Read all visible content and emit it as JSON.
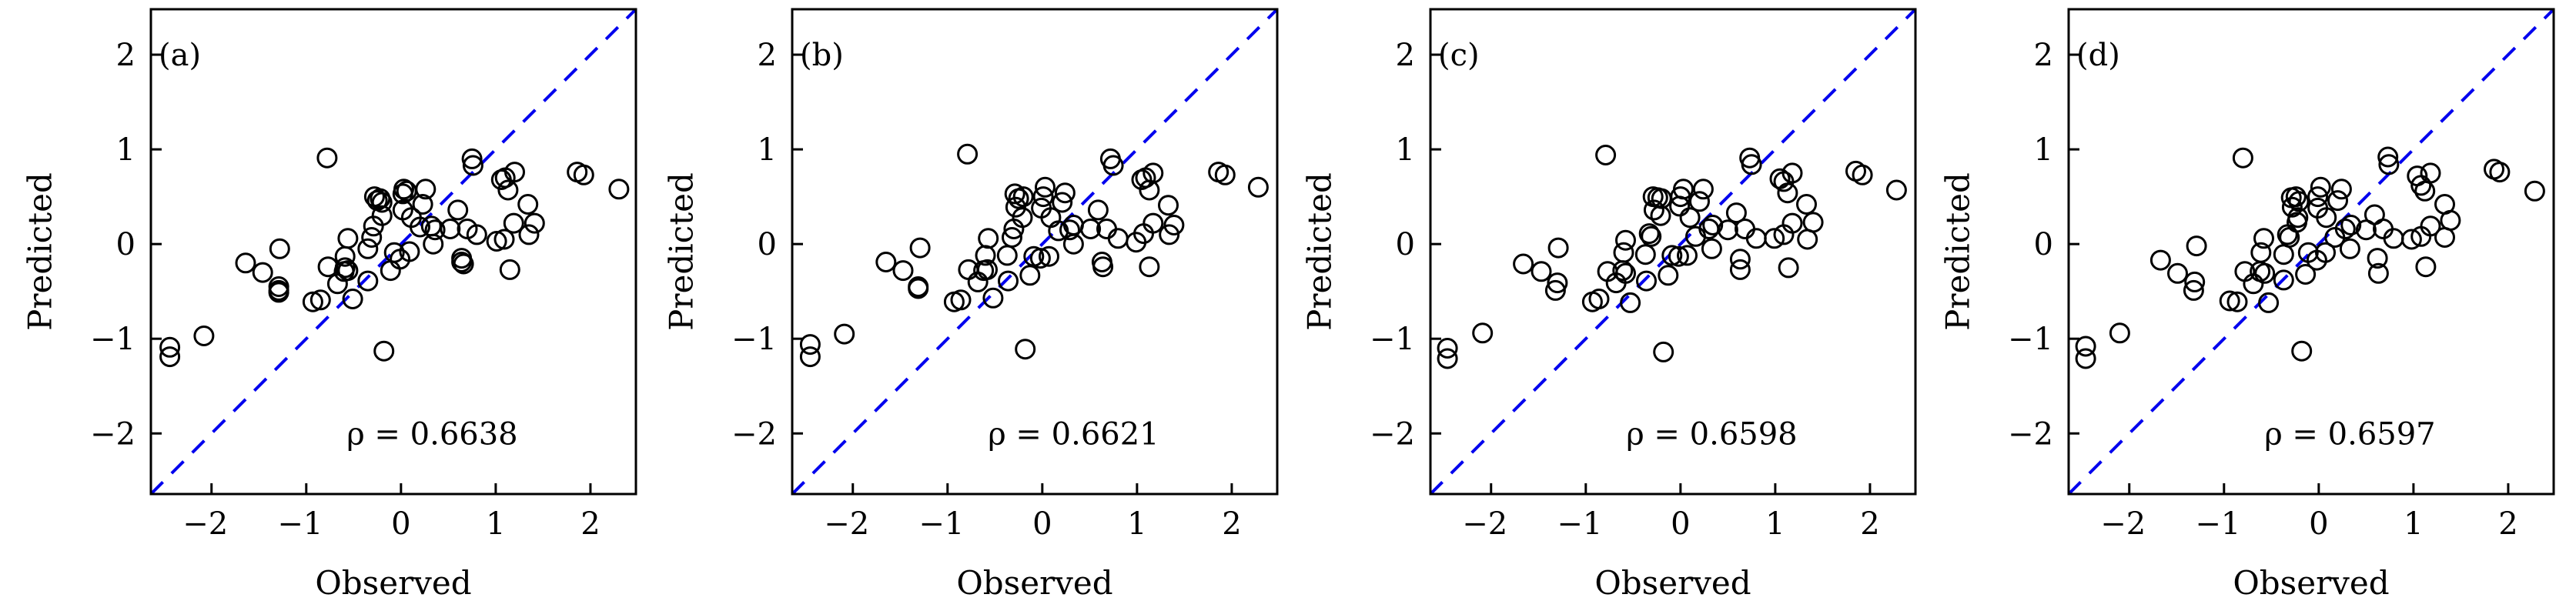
{
  "chart_data": [
    {
      "type": "scatter",
      "panel_label": "(a)",
      "xlabel": "Observed",
      "ylabel": "Predicted",
      "xlim": [
        -2.64,
        2.48
      ],
      "ylim": [
        -2.64,
        2.48
      ],
      "xticks": [
        -2,
        -1,
        0,
        1,
        2
      ],
      "yticks": [
        -2,
        -1,
        0,
        1,
        2
      ],
      "xtick_labels": [
        "−2",
        "−1",
        "0",
        "1",
        "2"
      ],
      "ytick_labels": [
        "−2",
        "−1",
        "0",
        "1",
        "2"
      ],
      "annotation": "ρ = 0.6638",
      "rho": 0.6638,
      "reference_line": {
        "type": "y=x",
        "style": "dashed",
        "color": "#0000ee"
      },
      "marker": {
        "shape": "open-circle",
        "color": "#000000"
      },
      "grid": false,
      "points": [
        [
          -2.44,
          -1.09
        ],
        [
          -2.44,
          -1.19
        ],
        [
          -2.08,
          -0.97
        ],
        [
          -1.64,
          -0.2
        ],
        [
          -1.46,
          -0.3
        ],
        [
          -1.29,
          -0.45
        ],
        [
          -1.29,
          -0.49
        ],
        [
          -1.29,
          -0.51
        ],
        [
          -1.28,
          -0.05
        ],
        [
          -0.93,
          -0.61
        ],
        [
          -0.85,
          -0.59
        ],
        [
          -0.78,
          0.91
        ],
        [
          -0.77,
          -0.24
        ],
        [
          -0.67,
          -0.42
        ],
        [
          -0.6,
          -0.29
        ],
        [
          -0.59,
          -0.25
        ],
        [
          -0.56,
          -0.28
        ],
        [
          -0.59,
          -0.13
        ],
        [
          -0.56,
          0.06
        ],
        [
          -0.51,
          -0.58
        ],
        [
          -0.35,
          -0.39
        ],
        [
          -0.35,
          -0.05
        ],
        [
          -0.31,
          0.07
        ],
        [
          -0.29,
          0.19
        ],
        [
          -0.28,
          0.5
        ],
        [
          -0.25,
          0.46
        ],
        [
          -0.22,
          0.48
        ],
        [
          -0.2,
          0.44
        ],
        [
          -0.2,
          0.3
        ],
        [
          -0.18,
          -1.13
        ],
        [
          -0.11,
          -0.28
        ],
        [
          -0.07,
          -0.09
        ],
        [
          -0.01,
          -0.16
        ],
        [
          0.02,
          0.53
        ],
        [
          0.03,
          0.58
        ],
        [
          0.06,
          0.56
        ],
        [
          0.02,
          0.36
        ],
        [
          0.09,
          -0.08
        ],
        [
          0.11,
          0.28
        ],
        [
          0.2,
          0.18
        ],
        [
          0.23,
          0.42
        ],
        [
          0.26,
          0.58
        ],
        [
          0.32,
          0.19
        ],
        [
          0.34,
          0.0
        ],
        [
          0.36,
          0.15
        ],
        [
          0.52,
          0.16
        ],
        [
          0.6,
          0.36
        ],
        [
          0.64,
          -0.15
        ],
        [
          0.64,
          -0.19
        ],
        [
          0.66,
          -0.21
        ],
        [
          0.7,
          0.16
        ],
        [
          0.75,
          0.9
        ],
        [
          0.76,
          0.83
        ],
        [
          0.8,
          0.1
        ],
        [
          1.01,
          0.03
        ],
        [
          1.06,
          0.68
        ],
        [
          1.09,
          0.05
        ],
        [
          1.1,
          0.7
        ],
        [
          1.13,
          0.57
        ],
        [
          1.15,
          -0.27
        ],
        [
          1.19,
          0.22
        ],
        [
          1.2,
          0.76
        ],
        [
          1.34,
          0.42
        ],
        [
          1.35,
          0.1
        ],
        [
          1.41,
          0.22
        ],
        [
          1.86,
          0.76
        ],
        [
          1.93,
          0.73
        ],
        [
          2.3,
          0.58
        ]
      ]
    },
    {
      "type": "scatter",
      "panel_label": "(b)",
      "xlabel": "Observed",
      "ylabel": "Predicted",
      "xlim": [
        -2.64,
        2.48
      ],
      "ylim": [
        -2.64,
        2.48
      ],
      "xticks": [
        -2,
        -1,
        0,
        1,
        2
      ],
      "yticks": [
        -2,
        -1,
        0,
        1,
        2
      ],
      "xtick_labels": [
        "−2",
        "−1",
        "0",
        "1",
        "2"
      ],
      "ytick_labels": [
        "−2",
        "−1",
        "0",
        "1",
        "2"
      ],
      "annotation": "ρ = 0.6621",
      "rho": 0.6621,
      "reference_line": {
        "type": "y=x",
        "style": "dashed",
        "color": "#0000ee"
      },
      "marker": {
        "shape": "open-circle",
        "color": "#000000"
      },
      "grid": false,
      "points": [
        [
          -2.45,
          -1.06
        ],
        [
          -2.45,
          -1.19
        ],
        [
          -2.09,
          -0.95
        ],
        [
          -1.65,
          -0.19
        ],
        [
          -1.47,
          -0.28
        ],
        [
          -1.31,
          -0.45
        ],
        [
          -1.31,
          -0.47
        ],
        [
          -1.29,
          -0.04
        ],
        [
          -0.93,
          -0.61
        ],
        [
          -0.86,
          -0.59
        ],
        [
          -0.79,
          0.95
        ],
        [
          -0.78,
          -0.27
        ],
        [
          -0.68,
          -0.4
        ],
        [
          -0.62,
          -0.28
        ],
        [
          -0.58,
          -0.27
        ],
        [
          -0.6,
          -0.12
        ],
        [
          -0.57,
          0.06
        ],
        [
          -0.52,
          -0.57
        ],
        [
          -0.37,
          -0.12
        ],
        [
          -0.36,
          -0.39
        ],
        [
          -0.32,
          0.07
        ],
        [
          -0.3,
          0.16
        ],
        [
          -0.29,
          0.53
        ],
        [
          -0.25,
          0.48
        ],
        [
          -0.2,
          0.5
        ],
        [
          -0.28,
          0.39
        ],
        [
          -0.21,
          0.28
        ],
        [
          -0.18,
          -1.11
        ],
        [
          -0.13,
          -0.33
        ],
        [
          -0.09,
          -0.13
        ],
        [
          -0.02,
          -0.15
        ],
        [
          0.07,
          -0.13
        ],
        [
          0.03,
          0.6
        ],
        [
          0.01,
          0.5
        ],
        [
          -0.01,
          0.38
        ],
        [
          0.09,
          0.28
        ],
        [
          0.24,
          0.54
        ],
        [
          0.21,
          0.44
        ],
        [
          0.17,
          0.14
        ],
        [
          0.29,
          0.15
        ],
        [
          0.33,
          0.2
        ],
        [
          0.33,
          0.0
        ],
        [
          0.59,
          0.36
        ],
        [
          0.51,
          0.16
        ],
        [
          0.68,
          0.16
        ],
        [
          0.63,
          -0.19
        ],
        [
          0.64,
          -0.24
        ],
        [
          0.72,
          0.9
        ],
        [
          0.75,
          0.83
        ],
        [
          0.8,
          0.06
        ],
        [
          0.99,
          0.02
        ],
        [
          1.05,
          0.68
        ],
        [
          1.07,
          0.11
        ],
        [
          1.09,
          0.7
        ],
        [
          1.13,
          0.57
        ],
        [
          1.13,
          -0.24
        ],
        [
          1.17,
          0.22
        ],
        [
          1.17,
          0.75
        ],
        [
          1.33,
          0.41
        ],
        [
          1.34,
          0.1
        ],
        [
          1.39,
          0.2
        ],
        [
          1.86,
          0.76
        ],
        [
          1.93,
          0.73
        ],
        [
          2.28,
          0.6
        ]
      ]
    },
    {
      "type": "scatter",
      "panel_label": "(c)",
      "xlabel": "Observed",
      "ylabel": "Predicted",
      "xlim": [
        -2.64,
        2.48
      ],
      "ylim": [
        -2.64,
        2.48
      ],
      "xticks": [
        -2,
        -1,
        0,
        1,
        2
      ],
      "yticks": [
        -2,
        -1,
        0,
        1,
        2
      ],
      "xtick_labels": [
        "−2",
        "−1",
        "0",
        "1",
        "2"
      ],
      "ytick_labels": [
        "−2",
        "−1",
        "0",
        "1",
        "2"
      ],
      "annotation": "ρ = 0.6598",
      "rho": 0.6598,
      "reference_line": {
        "type": "y=x",
        "style": "dashed",
        "color": "#0000ee"
      },
      "marker": {
        "shape": "open-circle",
        "color": "#000000"
      },
      "grid": false,
      "points": [
        [
          -2.46,
          -1.1
        ],
        [
          -2.46,
          -1.21
        ],
        [
          -2.09,
          -0.94
        ],
        [
          -1.66,
          -0.21
        ],
        [
          -1.47,
          -0.29
        ],
        [
          -1.3,
          -0.41
        ],
        [
          -1.32,
          -0.49
        ],
        [
          -1.29,
          -0.04
        ],
        [
          -0.93,
          -0.61
        ],
        [
          -0.86,
          -0.58
        ],
        [
          -0.79,
          0.94
        ],
        [
          -0.77,
          -0.29
        ],
        [
          -0.68,
          -0.41
        ],
        [
          -0.61,
          -0.28
        ],
        [
          -0.58,
          -0.31
        ],
        [
          -0.6,
          -0.09
        ],
        [
          -0.58,
          0.04
        ],
        [
          -0.53,
          -0.62
        ],
        [
          -0.37,
          -0.11
        ],
        [
          -0.36,
          -0.39
        ],
        [
          -0.33,
          0.11
        ],
        [
          -0.31,
          0.08
        ],
        [
          -0.29,
          0.5
        ],
        [
          -0.24,
          0.49
        ],
        [
          -0.2,
          0.48
        ],
        [
          -0.28,
          0.36
        ],
        [
          -0.21,
          0.3
        ],
        [
          -0.18,
          -1.14
        ],
        [
          -0.13,
          -0.33
        ],
        [
          -0.09,
          -0.12
        ],
        [
          -0.02,
          -0.13
        ],
        [
          0.07,
          -0.12
        ],
        [
          0.03,
          0.58
        ],
        [
          0.0,
          0.5
        ],
        [
          -0.01,
          0.4
        ],
        [
          0.1,
          0.28
        ],
        [
          0.24,
          0.58
        ],
        [
          0.2,
          0.45
        ],
        [
          0.16,
          0.08
        ],
        [
          0.3,
          0.16
        ],
        [
          0.34,
          0.2
        ],
        [
          0.33,
          -0.05
        ],
        [
          0.59,
          0.33
        ],
        [
          0.5,
          0.15
        ],
        [
          0.68,
          0.16
        ],
        [
          0.63,
          -0.16
        ],
        [
          0.63,
          -0.27
        ],
        [
          0.73,
          0.91
        ],
        [
          0.75,
          0.84
        ],
        [
          0.8,
          0.06
        ],
        [
          0.99,
          0.06
        ],
        [
          1.05,
          0.69
        ],
        [
          1.09,
          0.1
        ],
        [
          1.09,
          0.66
        ],
        [
          1.13,
          0.54
        ],
        [
          1.14,
          -0.25
        ],
        [
          1.18,
          0.22
        ],
        [
          1.18,
          0.75
        ],
        [
          1.33,
          0.42
        ],
        [
          1.34,
          0.05
        ],
        [
          1.4,
          0.23
        ],
        [
          1.85,
          0.77
        ],
        [
          1.92,
          0.73
        ],
        [
          2.28,
          0.57
        ]
      ]
    },
    {
      "type": "scatter",
      "panel_label": "(d)",
      "xlabel": "Observed",
      "ylabel": "Predicted",
      "xlim": [
        -2.64,
        2.48
      ],
      "ylim": [
        -2.64,
        2.48
      ],
      "xticks": [
        -2,
        -1,
        0,
        1,
        2
      ],
      "yticks": [
        -2,
        -1,
        0,
        1,
        2
      ],
      "xtick_labels": [
        "−2",
        "−1",
        "0",
        "1",
        "2"
      ],
      "ytick_labels": [
        "−2",
        "−1",
        "0",
        "1",
        "2"
      ],
      "annotation": "ρ = 0.6597",
      "rho": 0.6597,
      "reference_line": {
        "type": "y=x",
        "style": "dashed",
        "color": "#0000ee"
      },
      "marker": {
        "shape": "open-circle",
        "color": "#000000"
      },
      "grid": false,
      "points": [
        [
          -2.46,
          -1.08
        ],
        [
          -2.46,
          -1.21
        ],
        [
          -2.1,
          -0.94
        ],
        [
          -1.67,
          -0.17
        ],
        [
          -1.49,
          -0.31
        ],
        [
          -1.31,
          -0.4
        ],
        [
          -1.32,
          -0.49
        ],
        [
          -1.29,
          -0.02
        ],
        [
          -0.94,
          -0.6
        ],
        [
          -0.86,
          -0.61
        ],
        [
          -0.8,
          0.91
        ],
        [
          -0.78,
          -0.29
        ],
        [
          -0.69,
          -0.42
        ],
        [
          -0.62,
          -0.29
        ],
        [
          -0.57,
          -0.31
        ],
        [
          -0.61,
          -0.09
        ],
        [
          -0.58,
          0.06
        ],
        [
          -0.53,
          -0.62
        ],
        [
          -0.37,
          -0.11
        ],
        [
          -0.37,
          -0.38
        ],
        [
          -0.33,
          0.1
        ],
        [
          -0.31,
          0.07
        ],
        [
          -0.29,
          0.49
        ],
        [
          -0.24,
          0.5
        ],
        [
          -0.21,
          0.45
        ],
        [
          -0.28,
          0.39
        ],
        [
          -0.22,
          0.28
        ],
        [
          -0.23,
          0.23
        ],
        [
          -0.18,
          -1.13
        ],
        [
          -0.14,
          -0.32
        ],
        [
          -0.11,
          -0.09
        ],
        [
          -0.02,
          -0.17
        ],
        [
          0.07,
          -0.09
        ],
        [
          0.02,
          0.6
        ],
        [
          -0.01,
          0.5
        ],
        [
          -0.01,
          0.38
        ],
        [
          0.08,
          0.28
        ],
        [
          0.24,
          0.58
        ],
        [
          0.2,
          0.46
        ],
        [
          0.17,
          0.07
        ],
        [
          0.28,
          0.16
        ],
        [
          0.34,
          0.2
        ],
        [
          0.33,
          -0.05
        ],
        [
          0.59,
          0.31
        ],
        [
          0.5,
          0.15
        ],
        [
          0.68,
          0.16
        ],
        [
          0.62,
          -0.15
        ],
        [
          0.63,
          -0.31
        ],
        [
          0.73,
          0.92
        ],
        [
          0.74,
          0.84
        ],
        [
          0.79,
          0.06
        ],
        [
          0.98,
          0.05
        ],
        [
          1.04,
          0.72
        ],
        [
          1.08,
          0.08
        ],
        [
          1.08,
          0.62
        ],
        [
          1.12,
          0.56
        ],
        [
          1.13,
          -0.24
        ],
        [
          1.18,
          0.19
        ],
        [
          1.18,
          0.75
        ],
        [
          1.33,
          0.42
        ],
        [
          1.33,
          0.07
        ],
        [
          1.39,
          0.25
        ],
        [
          1.85,
          0.79
        ],
        [
          1.91,
          0.76
        ],
        [
          2.28,
          0.56
        ]
      ]
    }
  ]
}
